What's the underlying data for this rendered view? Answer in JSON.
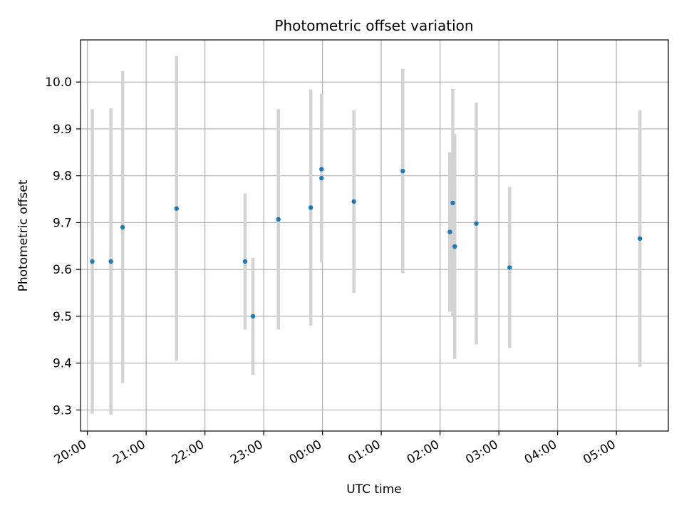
{
  "chart_data": {
    "type": "scatter",
    "title": "Photometric offset variation",
    "xlabel": "UTC time",
    "ylabel": "Photometric offset",
    "x_axis_type": "time",
    "x_tick_labels": [
      "20:00",
      "21:00",
      "22:00",
      "23:00",
      "00:00",
      "01:00",
      "02:00",
      "03:00",
      "04:00",
      "05:00"
    ],
    "y_ticks": [
      9.3,
      9.4,
      9.5,
      9.6,
      9.7,
      9.8,
      9.9,
      10.0
    ],
    "y_tick_labels": [
      "9.3",
      "9.4",
      "9.5",
      "9.6",
      "9.7",
      "9.8",
      "9.9",
      "10.0"
    ],
    "xlim": [
      "19:53",
      "05:53"
    ],
    "ylim": [
      9.255,
      10.09
    ],
    "grid": true,
    "colors": {
      "points": "#1f77b4",
      "errorbars": "#d3d3d3",
      "grid": "#b0b0b0"
    },
    "points": [
      {
        "time": "20:05",
        "y": 9.617,
        "err": 0.325
      },
      {
        "time": "20:24",
        "y": 9.617,
        "err": 0.327
      },
      {
        "time": "20:36",
        "y": 9.69,
        "err": 0.333
      },
      {
        "time": "21:31",
        "y": 9.73,
        "err": 0.325
      },
      {
        "time": "22:41",
        "y": 9.617,
        "err": 0.145
      },
      {
        "time": "22:49",
        "y": 9.5,
        "err": 0.125
      },
      {
        "time": "23:15",
        "y": 9.707,
        "err": 0.235
      },
      {
        "time": "23:48",
        "y": 9.732,
        "err": 0.252
      },
      {
        "time": "23:59",
        "y": 9.795,
        "err": 0.18
      },
      {
        "time": "23:59",
        "y": 9.814,
        "err": 0.16
      },
      {
        "time": "00:32",
        "y": 9.745,
        "err": 0.195
      },
      {
        "time": "01:22",
        "y": 9.81,
        "err": 0.218
      },
      {
        "time": "02:10",
        "y": 9.68,
        "err": 0.17
      },
      {
        "time": "02:13",
        "y": 9.742,
        "err": 0.243
      },
      {
        "time": "02:15",
        "y": 9.649,
        "err": 0.24
      },
      {
        "time": "02:37",
        "y": 9.698,
        "err": 0.258
      },
      {
        "time": "03:11",
        "y": 9.604,
        "err": 0.172
      },
      {
        "time": "05:24",
        "y": 9.666,
        "err": 0.274
      }
    ]
  }
}
